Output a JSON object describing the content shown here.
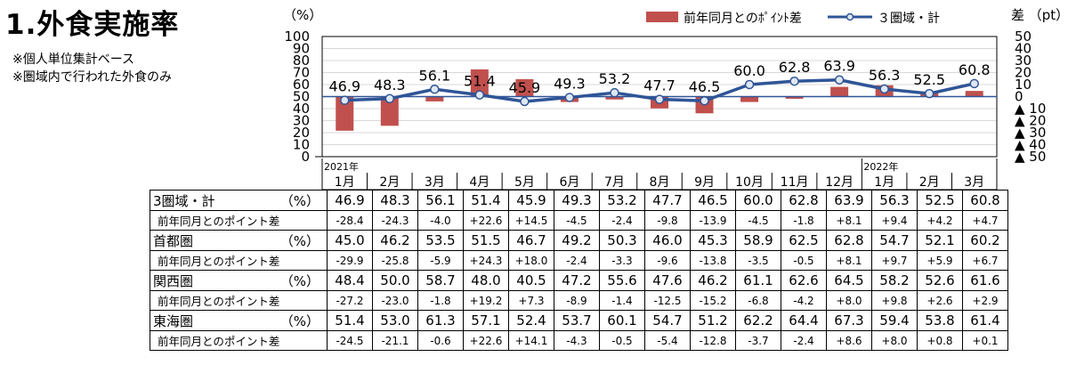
{
  "header": {
    "title": "1.外食実施率",
    "notes": [
      "※個人単位集計ベース",
      "※圏域内で行われた外食のみ"
    ]
  },
  "chart_data": {
    "type": "bar+line",
    "left_axis": {
      "unit_label": "（%）",
      "min": 0,
      "max": 100,
      "ticks": [
        "0",
        "10",
        "20",
        "30",
        "40",
        "50",
        "60",
        "70",
        "80",
        "90",
        "100"
      ]
    },
    "right_axis": {
      "unit_label": "差 （pt）",
      "min": -50,
      "max": 50,
      "ticks": [
        "50",
        "40",
        "30",
        "20",
        "10",
        "0",
        "▲ 10",
        "▲ 20",
        "▲ 30",
        "▲ 40",
        "▲ 50"
      ]
    },
    "year_labels": [
      {
        "label": "2021年",
        "index": 0
      },
      {
        "label": "2022年",
        "index": 12
      }
    ],
    "categories": [
      "1月",
      "2月",
      "3月",
      "4月",
      "5月",
      "6月",
      "7月",
      "8月",
      "9月",
      "10月",
      "11月",
      "12月",
      "1月",
      "2月",
      "3月"
    ],
    "legend": {
      "bar": "前年同月とのﾎﾟｲﾝﾄ差",
      "line": "３圏域・計"
    },
    "colors": {
      "bar": "#c0504d",
      "line": "#2f5597"
    },
    "series": [
      {
        "name": "３圏域・計",
        "kind": "line",
        "axis": "left",
        "values": [
          46.9,
          48.3,
          56.1,
          51.4,
          45.9,
          49.3,
          53.2,
          47.7,
          46.5,
          60.0,
          62.8,
          63.9,
          56.3,
          52.5,
          60.8
        ],
        "labels": [
          "46.9",
          "48.3",
          "56.1",
          "51.4",
          "45.9",
          "49.3",
          "53.2",
          "47.7",
          "46.5",
          "60.0",
          "62.8",
          "63.9",
          "56.3",
          "52.5",
          "60.8"
        ]
      },
      {
        "name": "前年同月とのﾎﾟｲﾝﾄ差",
        "kind": "bar",
        "axis": "right",
        "values": [
          -28.4,
          -24.3,
          -4.0,
          22.6,
          14.5,
          -4.5,
          -2.4,
          -9.8,
          -13.9,
          -4.5,
          -1.8,
          8.1,
          9.4,
          4.2,
          4.7
        ]
      }
    ]
  },
  "table": {
    "rows": [
      {
        "label": "3圏域・計",
        "unit": "（%）",
        "type": "value",
        "values": [
          "46.9",
          "48.3",
          "56.1",
          "51.4",
          "45.9",
          "49.3",
          "53.2",
          "47.7",
          "46.5",
          "60.0",
          "62.8",
          "63.9",
          "56.3",
          "52.5",
          "60.8"
        ]
      },
      {
        "label": "前年同月とのポイント差",
        "unit": "",
        "type": "diff",
        "values": [
          "-28.4",
          "-24.3",
          "-4.0",
          "+22.6",
          "+14.5",
          "-4.5",
          "-2.4",
          "-9.8",
          "-13.9",
          "-4.5",
          "-1.8",
          "+8.1",
          "+9.4",
          "+4.2",
          "+4.7"
        ]
      },
      {
        "label": "首都圏",
        "unit": "（%）",
        "type": "value",
        "values": [
          "45.0",
          "46.2",
          "53.5",
          "51.5",
          "46.7",
          "49.2",
          "50.3",
          "46.0",
          "45.3",
          "58.9",
          "62.5",
          "62.8",
          "54.7",
          "52.1",
          "60.2"
        ]
      },
      {
        "label": "前年同月とのポイント差",
        "unit": "",
        "type": "diff",
        "values": [
          "-29.9",
          "-25.8",
          "-5.9",
          "+24.3",
          "+18.0",
          "-2.4",
          "-3.3",
          "-9.6",
          "-13.8",
          "-3.5",
          "-0.5",
          "+8.1",
          "+9.7",
          "+5.9",
          "+6.7"
        ]
      },
      {
        "label": "関西圏",
        "unit": "（%）",
        "type": "value",
        "values": [
          "48.4",
          "50.0",
          "58.7",
          "48.0",
          "40.5",
          "47.2",
          "55.6",
          "47.6",
          "46.2",
          "61.1",
          "62.6",
          "64.5",
          "58.2",
          "52.6",
          "61.6"
        ]
      },
      {
        "label": "前年同月とのポイント差",
        "unit": "",
        "type": "diff",
        "values": [
          "-27.2",
          "-23.0",
          "-1.8",
          "+19.2",
          "+7.3",
          "-8.9",
          "-1.4",
          "-12.5",
          "-15.2",
          "-6.8",
          "-4.2",
          "+8.0",
          "+9.8",
          "+2.6",
          "+2.9"
        ]
      },
      {
        "label": "東海圏",
        "unit": "（%）",
        "type": "value",
        "values": [
          "51.4",
          "53.0",
          "61.3",
          "57.1",
          "52.4",
          "53.7",
          "60.1",
          "54.7",
          "51.2",
          "62.2",
          "64.4",
          "67.3",
          "59.4",
          "53.8",
          "61.4"
        ]
      },
      {
        "label": "前年同月とのポイント差",
        "unit": "",
        "type": "diff",
        "values": [
          "-24.5",
          "-21.1",
          "-0.6",
          "+22.6",
          "+14.1",
          "-4.3",
          "-0.5",
          "-5.4",
          "-12.8",
          "-3.7",
          "-2.4",
          "+8.6",
          "+8.0",
          "+0.8",
          "+0.1"
        ]
      }
    ]
  }
}
